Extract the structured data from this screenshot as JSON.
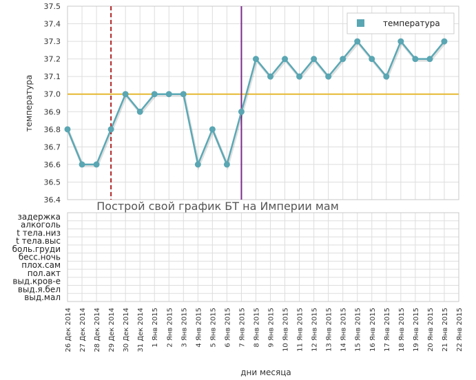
{
  "chart_data": {
    "type": "line",
    "ylabel": "температура",
    "xlabel": "дни месяца",
    "ylim": [
      36.4,
      37.5
    ],
    "yticks": [
      "37.5",
      "37.4",
      "37.3",
      "37.2",
      "37.1",
      "37.0",
      "36.9",
      "36.8",
      "36.7",
      "36.6",
      "36.5",
      "36.4"
    ],
    "categories": [
      "26 Дек 2014",
      "27 Дек 2014",
      "28 Дек 2014",
      "29 Дек 2014",
      "30 Дек 2014",
      "31 Дек 2014",
      "1 Янв 2015",
      "2 Янв 2015",
      "3 Янв 2015",
      "4 Янв 2015",
      "5 Янв 2015",
      "6 Янв 2015",
      "7 Янв 2015",
      "8 Янв 2015",
      "9 Янв 2015",
      "10 Янв 2015",
      "11 Янв 2015",
      "12 Янв 2015",
      "13 Янв 2015",
      "14 Янв 2015",
      "15 Янв 2015",
      "16 Янв 2015",
      "17 Янв 2015",
      "18 Янв 2015",
      "19 Янв 2015",
      "20 Янв 2015",
      "21 Янв 2015",
      "22 Янв 2015"
    ],
    "series": [
      {
        "name": "температура",
        "values": [
          36.8,
          36.6,
          36.6,
          36.8,
          37.0,
          36.9,
          37.0,
          37.0,
          37.0,
          36.6,
          36.8,
          36.6,
          36.9,
          37.2,
          37.1,
          37.2,
          37.1,
          37.2,
          37.1,
          37.2,
          37.3,
          37.2,
          37.1,
          37.3,
          37.2,
          37.2,
          37.3,
          null
        ]
      }
    ],
    "coverline": 37.0,
    "vertical_markers": [
      {
        "category": "29 Дек 2014",
        "style": "dashed"
      },
      {
        "category": "7 Янв 2015",
        "style": "solid"
      }
    ],
    "symptom_rows": [
      "задержка",
      "алкоголь",
      "t тела.низ",
      "t тела.выс",
      "боль.груди",
      "бесс.ночь",
      "плох.сам",
      "пол.акт",
      "выд.кров-е",
      "выд.я.бел",
      "выд.мал"
    ],
    "watermark": "Построй свой график БТ на Империи мам",
    "legend_position": "top-right",
    "grid": true,
    "colors": {
      "line": "#5ba8b5",
      "marker": "#5aa6b3",
      "coverline": "#e6b830",
      "dashed_marker": "#b22222",
      "solid_marker": "#7b2a8a",
      "grid": "#dddddd"
    }
  }
}
